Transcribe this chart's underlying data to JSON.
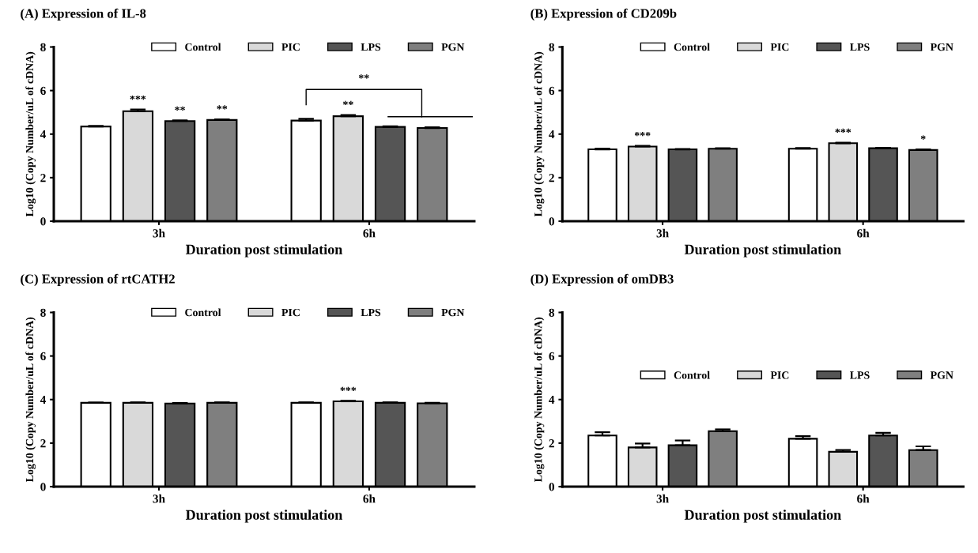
{
  "chart_data": [
    {
      "type": "bar",
      "title": "(A) Expression of IL-8",
      "xlabel": "Duration post stimulation",
      "ylabel": "Log10 (Copy Number/uL of cDNA)",
      "categories": [
        "3h",
        "6h"
      ],
      "ylim": [
        0,
        8
      ],
      "yticks": [
        0,
        2,
        4,
        6,
        8
      ],
      "grid": false,
      "legend": "top right",
      "annotations": [
        "**"
      ],
      "series": [
        {
          "name": "Control",
          "color": "#ffffff",
          "values": [
            4.35,
            4.62
          ],
          "errors": [
            0.03,
            0.08
          ],
          "value_labels": [
            null,
            null
          ]
        },
        {
          "name": "PIC",
          "color": "#d9d9d9",
          "values": [
            5.05,
            4.82
          ],
          "errors": [
            0.08,
            0.06
          ],
          "value_labels": [
            "***",
            "**"
          ]
        },
        {
          "name": "LPS",
          "color": "#555555",
          "values": [
            4.6,
            4.33
          ],
          "errors": [
            0.03,
            0.03
          ],
          "value_labels": [
            "**",
            null
          ]
        },
        {
          "name": "PGN",
          "color": "#7f7f7f",
          "values": [
            4.65,
            4.28
          ],
          "errors": [
            0.03,
            0.03
          ],
          "value_labels": [
            "**",
            null
          ]
        }
      ]
    },
    {
      "type": "bar",
      "title": "(B) Expression of CD209b",
      "xlabel": "Duration post stimulation",
      "ylabel": "Log10 (Copy Number/uL of cDNA)",
      "categories": [
        "3h",
        "6h"
      ],
      "ylim": [
        0,
        8
      ],
      "yticks": [
        0,
        2,
        4,
        6,
        8
      ],
      "grid": false,
      "legend": "top right",
      "series": [
        {
          "name": "Control",
          "color": "#ffffff",
          "values": [
            3.3,
            3.33
          ],
          "errors": [
            0.03,
            0.03
          ],
          "value_labels": [
            null,
            null
          ]
        },
        {
          "name": "PIC",
          "color": "#d9d9d9",
          "values": [
            3.43,
            3.58
          ],
          "errors": [
            0.03,
            0.03
          ],
          "value_labels": [
            "***",
            "***"
          ]
        },
        {
          "name": "LPS",
          "color": "#555555",
          "values": [
            3.3,
            3.35
          ],
          "errors": [
            0.02,
            0.02
          ],
          "value_labels": [
            null,
            null
          ]
        },
        {
          "name": "PGN",
          "color": "#7f7f7f",
          "values": [
            3.33,
            3.27
          ],
          "errors": [
            0.02,
            0.03
          ],
          "value_labels": [
            null,
            "*"
          ]
        }
      ]
    },
    {
      "type": "bar",
      "title": "(C) Expression of rtCATH2",
      "xlabel": "Duration post stimulation",
      "ylabel": "Log10 (Copy Number/uL of cDNA)",
      "categories": [
        "3h",
        "6h"
      ],
      "ylim": [
        0,
        8
      ],
      "yticks": [
        0,
        2,
        4,
        6,
        8
      ],
      "grid": false,
      "legend": "top right",
      "series": [
        {
          "name": "Control",
          "color": "#ffffff",
          "values": [
            3.85,
            3.85
          ],
          "errors": [
            0.01,
            0.02
          ],
          "value_labels": [
            null,
            null
          ]
        },
        {
          "name": "PIC",
          "color": "#d9d9d9",
          "values": [
            3.85,
            3.92
          ],
          "errors": [
            0.02,
            0.02
          ],
          "value_labels": [
            null,
            "***"
          ]
        },
        {
          "name": "LPS",
          "color": "#555555",
          "values": [
            3.82,
            3.85
          ],
          "errors": [
            0.02,
            0.02
          ],
          "value_labels": [
            null,
            null
          ]
        },
        {
          "name": "PGN",
          "color": "#7f7f7f",
          "values": [
            3.85,
            3.83
          ],
          "errors": [
            0.02,
            0.02
          ],
          "value_labels": [
            null,
            null
          ]
        }
      ]
    },
    {
      "type": "bar",
      "title": "(D) Expression of omDB3",
      "xlabel": "Duration post stimulation",
      "ylabel": "Log10 (Copy Number/uL of cDNA)",
      "categories": [
        "3h",
        "6h"
      ],
      "ylim": [
        0,
        8
      ],
      "yticks": [
        0,
        2,
        4,
        6,
        8
      ],
      "grid": false,
      "legend": "right",
      "series": [
        {
          "name": "Control",
          "color": "#ffffff",
          "values": [
            2.35,
            2.2
          ],
          "errors": [
            0.15,
            0.12
          ]
        },
        {
          "name": "PIC",
          "color": "#d9d9d9",
          "values": [
            1.8,
            1.6
          ],
          "errors": [
            0.18,
            0.08
          ]
        },
        {
          "name": "LPS",
          "color": "#555555",
          "values": [
            1.9,
            2.35
          ],
          "errors": [
            0.22,
            0.12
          ]
        },
        {
          "name": "PGN",
          "color": "#7f7f7f",
          "values": [
            2.55,
            1.68
          ],
          "errors": [
            0.08,
            0.17
          ]
        }
      ]
    }
  ]
}
